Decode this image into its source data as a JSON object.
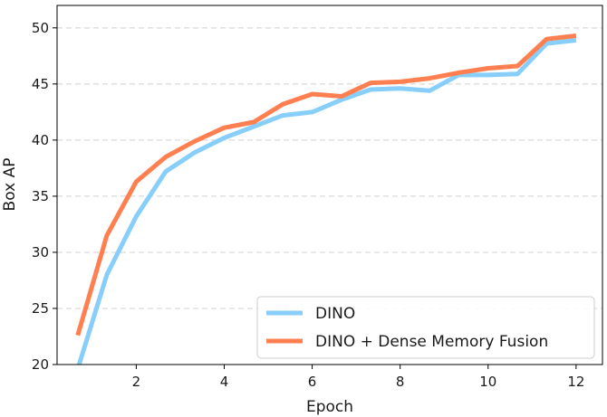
{
  "chart_data": {
    "type": "line",
    "title": "",
    "xlabel": "Epoch",
    "ylabel": "Box AP",
    "xlim": [
      0.2,
      12.6
    ],
    "ylim": [
      20,
      52
    ],
    "xticks": [
      2,
      4,
      6,
      8,
      10,
      12
    ],
    "yticks": [
      20,
      25,
      30,
      35,
      40,
      45,
      50
    ],
    "grid": "horizontal-dashed",
    "legend_position": "bottom-right",
    "series": [
      {
        "name": "DINO",
        "color": "#87CEFA",
        "x": [
          0.67,
          1.33,
          2.0,
          2.67,
          3.33,
          4.0,
          4.67,
          5.33,
          6.0,
          6.67,
          7.33,
          8.0,
          8.67,
          9.33,
          10.0,
          10.67,
          11.33,
          12.0
        ],
        "y": [
          19.6,
          28.0,
          33.2,
          37.2,
          38.9,
          40.2,
          41.2,
          42.2,
          42.5,
          43.6,
          44.5,
          44.6,
          44.4,
          45.8,
          45.8,
          45.9,
          48.6,
          48.9
        ]
      },
      {
        "name": "DINO + Dense Memory Fusion",
        "color": "#FF7F50",
        "x": [
          0.67,
          1.33,
          2.0,
          2.67,
          3.33,
          4.0,
          4.67,
          5.33,
          6.0,
          6.67,
          7.33,
          8.0,
          8.67,
          9.33,
          10.0,
          10.67,
          11.33,
          12.0
        ],
        "y": [
          22.6,
          31.5,
          36.3,
          38.5,
          39.9,
          41.1,
          41.6,
          43.2,
          44.1,
          43.9,
          45.1,
          45.2,
          45.5,
          46.0,
          46.4,
          46.6,
          49.0,
          49.3
        ]
      }
    ]
  }
}
